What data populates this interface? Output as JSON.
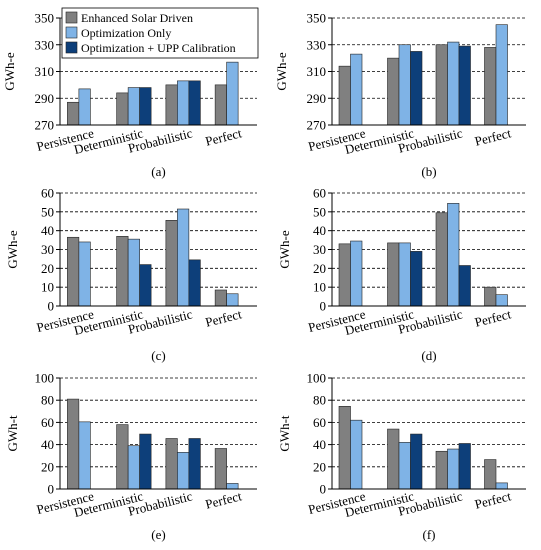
{
  "series_names": [
    "Enhanced Solar Driven",
    "Optimization Only",
    "Optimization + UPP Calibration"
  ],
  "colors": {
    "Enhanced Solar Driven": "#808080",
    "Optimization Only": "#7fb3e6",
    "Optimization + UPP Calibration": "#0d3f7a"
  },
  "chart_data": [
    {
      "type": "bar",
      "panel_label": "(a)",
      "ylabel": "GWh-e",
      "ylim": [
        270,
        350
      ],
      "yticks": [
        270,
        290,
        310,
        330,
        350
      ],
      "categories": [
        "Persistence",
        "Deterministic",
        "Probabilistic",
        "Perfect"
      ],
      "legend": "top-left",
      "series": [
        {
          "name": "Enhanced Solar Driven",
          "values": [
            287,
            294,
            300,
            300
          ]
        },
        {
          "name": "Optimization Only",
          "values": [
            297,
            298,
            303,
            317
          ]
        },
        {
          "name": "Optimization + UPP Calibration",
          "values": [
            null,
            298,
            303,
            null
          ]
        }
      ]
    },
    {
      "type": "bar",
      "panel_label": "(b)",
      "ylabel": "GWh-e",
      "ylim": [
        270,
        350
      ],
      "yticks": [
        270,
        290,
        310,
        330,
        350
      ],
      "categories": [
        "Persistence",
        "Deterministic",
        "Probabilistic",
        "Perfect"
      ],
      "series": [
        {
          "name": "Enhanced Solar Driven",
          "values": [
            314,
            320,
            330,
            328
          ]
        },
        {
          "name": "Optimization Only",
          "values": [
            323,
            330,
            332,
            345
          ]
        },
        {
          "name": "Optimization + UPP Calibration",
          "values": [
            null,
            325,
            329,
            null
          ]
        }
      ]
    },
    {
      "type": "bar",
      "panel_label": "(c)",
      "ylabel": "GWh-e",
      "ylim": [
        0,
        60
      ],
      "yticks": [
        0,
        10,
        20,
        30,
        40,
        50,
        60
      ],
      "categories": [
        "Persistence",
        "Deterministic",
        "Probabilistic",
        "Perfect"
      ],
      "series": [
        {
          "name": "Enhanced Solar Driven",
          "values": [
            36.5,
            37,
            45.5,
            8.5
          ]
        },
        {
          "name": "Optimization Only",
          "values": [
            34,
            35.5,
            51.5,
            6.5
          ]
        },
        {
          "name": "Optimization + UPP Calibration",
          "values": [
            null,
            22,
            24.5,
            null
          ]
        }
      ]
    },
    {
      "type": "bar",
      "panel_label": "(d)",
      "ylabel": "GWh-e",
      "ylim": [
        0,
        60
      ],
      "yticks": [
        0,
        10,
        20,
        30,
        40,
        50,
        60
      ],
      "categories": [
        "Persistence",
        "Deterministic",
        "Probabilistic",
        "Perfect"
      ],
      "series": [
        {
          "name": "Enhanced Solar Driven",
          "values": [
            33,
            33.5,
            49.5,
            10
          ]
        },
        {
          "name": "Optimization Only",
          "values": [
            34.5,
            33.5,
            54.5,
            6
          ]
        },
        {
          "name": "Optimization + UPP Calibration",
          "values": [
            null,
            29,
            21.5,
            null
          ]
        }
      ]
    },
    {
      "type": "bar",
      "panel_label": "(e)",
      "ylabel": "GWh-t",
      "ylim": [
        0,
        100
      ],
      "yticks": [
        0,
        20,
        40,
        60,
        80,
        100
      ],
      "categories": [
        "Persistence",
        "Deterministic",
        "Probabilistic",
        "Perfect"
      ],
      "series": [
        {
          "name": "Enhanced Solar Driven",
          "values": [
            81,
            58,
            45.5,
            36.5
          ]
        },
        {
          "name": "Optimization Only",
          "values": [
            60.5,
            39,
            33,
            5
          ]
        },
        {
          "name": "Optimization + UPP Calibration",
          "values": [
            null,
            49.5,
            45.5,
            null
          ]
        }
      ]
    },
    {
      "type": "bar",
      "panel_label": "(f)",
      "ylabel": "GWh-t",
      "ylim": [
        0,
        100
      ],
      "yticks": [
        0,
        20,
        40,
        60,
        80,
        100
      ],
      "categories": [
        "Persistence",
        "Deterministic",
        "Probabilistic",
        "Perfect"
      ],
      "series": [
        {
          "name": "Enhanced Solar Driven",
          "values": [
            74.5,
            54,
            34,
            26.5
          ]
        },
        {
          "name": "Optimization Only",
          "values": [
            62,
            42,
            36,
            5.5
          ]
        },
        {
          "name": "Optimization + UPP Calibration",
          "values": [
            null,
            49.5,
            41,
            null
          ]
        }
      ]
    }
  ]
}
